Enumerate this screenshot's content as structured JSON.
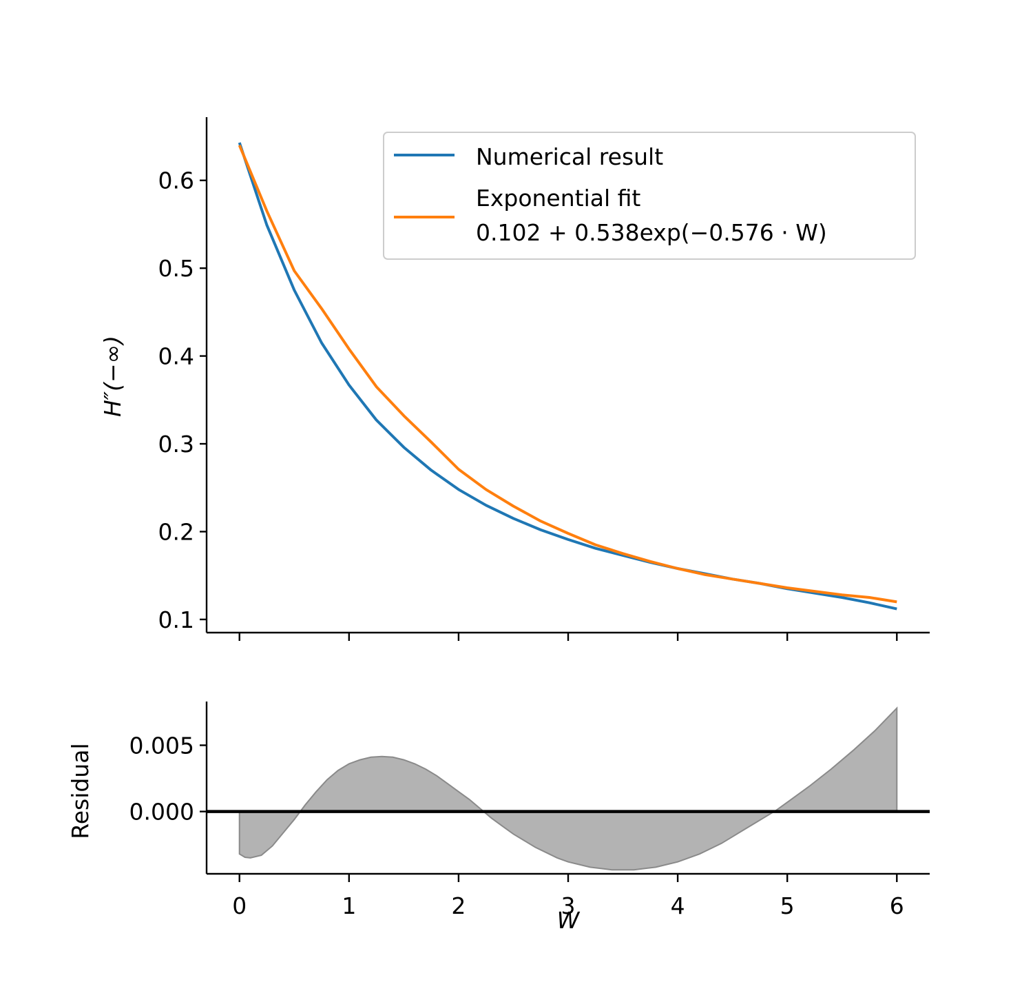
{
  "chart_data": [
    {
      "type": "line",
      "xlabel": "",
      "ylabel": "H″(−∞)",
      "xlim": [
        -0.3,
        6.3
      ],
      "ylim": [
        0.085,
        0.672
      ],
      "yticks": [
        0.1,
        0.2,
        0.3,
        0.4,
        0.5,
        0.6
      ],
      "ytick_labels": [
        "0.1",
        "0.2",
        "0.3",
        "0.4",
        "0.5",
        "0.6"
      ],
      "xticks": [
        0,
        1,
        2,
        3,
        4,
        5,
        6
      ],
      "show_xtick_labels": false,
      "grid": false,
      "legend_position": "top-right",
      "series": [
        {
          "name": "Numerical result",
          "color": "#1f77b4",
          "x": [
            0,
            0.25,
            0.5,
            0.75,
            1,
            1.25,
            1.5,
            1.75,
            2,
            2.25,
            2.5,
            2.75,
            3,
            3.25,
            3.5,
            3.75,
            4,
            4.25,
            4.5,
            4.75,
            5,
            5.25,
            5.5,
            5.75,
            6
          ],
          "y": [
            0.643,
            0.549,
            0.475,
            0.415,
            0.367,
            0.327,
            0.296,
            0.27,
            0.248,
            0.23,
            0.215,
            0.202,
            0.191,
            0.181,
            0.173,
            0.165,
            0.158,
            0.152,
            0.146,
            0.141,
            0.135,
            0.13,
            0.125,
            0.119,
            0.112
          ]
        },
        {
          "name": "Exponential fit",
          "name_line2": "0.102 + 0.538exp(−0.576 · W)",
          "color": "#ff7f0e",
          "fit": {
            "a": 0.102,
            "b": 0.538,
            "c": 0.576
          },
          "x": [
            0,
            0.25,
            0.5,
            0.75,
            1,
            1.25,
            1.5,
            1.75,
            2,
            2.25,
            2.5,
            2.75,
            3,
            3.25,
            3.5,
            3.75,
            4,
            4.25,
            4.5,
            4.75,
            5,
            5.25,
            5.5,
            5.75,
            6
          ],
          "y": [
            0.64,
            0.565,
            0.497,
            0.454,
            0.408,
            0.365,
            0.332,
            0.302,
            0.271,
            0.248,
            0.229,
            0.212,
            0.198,
            0.185,
            0.175,
            0.166,
            0.158,
            0.151,
            0.146,
            0.141,
            0.136,
            0.132,
            0.128,
            0.125,
            0.12
          ]
        }
      ]
    },
    {
      "type": "area",
      "xlabel": "W",
      "ylabel": "Residual",
      "xlim": [
        -0.3,
        6.3
      ],
      "ylim": [
        -0.0047,
        0.0083
      ],
      "yticks": [
        0.0,
        0.005
      ],
      "ytick_labels": [
        "0.000",
        "0.005"
      ],
      "xticks": [
        0,
        1,
        2,
        3,
        4,
        5,
        6
      ],
      "xtick_labels": [
        "0",
        "1",
        "2",
        "3",
        "4",
        "5",
        "6"
      ],
      "grid": false,
      "zero_line": true,
      "series": [
        {
          "fill_color": "#b3b3b3",
          "x": [
            0,
            0.05,
            0.1,
            0.2,
            0.3,
            0.4,
            0.5,
            0.6,
            0.7,
            0.8,
            0.9,
            1.0,
            1.1,
            1.2,
            1.3,
            1.4,
            1.5,
            1.6,
            1.7,
            1.8,
            1.9,
            2.0,
            2.1,
            2.2,
            2.3,
            2.4,
            2.5,
            2.6,
            2.7,
            2.8,
            2.9,
            3.0,
            3.1,
            3.2,
            3.3,
            3.4,
            3.5,
            3.6,
            3.7,
            3.8,
            3.9,
            4.0,
            4.1,
            4.2,
            4.3,
            4.4,
            4.5,
            4.6,
            4.7,
            4.8,
            4.9,
            5.0,
            5.2,
            5.4,
            5.6,
            5.8,
            6.0
          ],
          "y": [
            -0.0032,
            -0.00345,
            -0.0035,
            -0.0033,
            -0.0026,
            -0.0016,
            -0.0006,
            0.0005,
            0.0015,
            0.0024,
            0.0031,
            0.0036,
            0.0039,
            0.0041,
            0.00415,
            0.0041,
            0.0039,
            0.0036,
            0.0032,
            0.0027,
            0.0021,
            0.0015,
            0.0009,
            0.0002,
            -0.0005,
            -0.0011,
            -0.0017,
            -0.0022,
            -0.0027,
            -0.0031,
            -0.0035,
            -0.0038,
            -0.004,
            -0.0042,
            -0.0043,
            -0.0044,
            -0.0044,
            -0.0044,
            -0.0043,
            -0.0042,
            -0.004,
            -0.0038,
            -0.0035,
            -0.0032,
            -0.0028,
            -0.0024,
            -0.0019,
            -0.0014,
            -0.0009,
            -0.0004,
            0.0001,
            0.0007,
            0.0019,
            0.0032,
            0.0046,
            0.0061,
            0.0078
          ]
        }
      ]
    }
  ]
}
